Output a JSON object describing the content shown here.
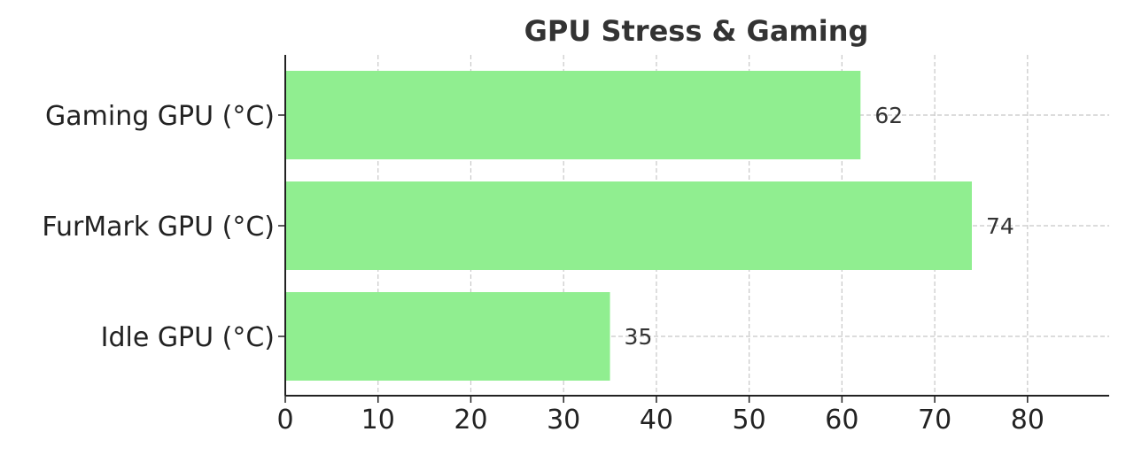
{
  "chart_data": {
    "type": "bar",
    "orientation": "horizontal",
    "title": "GPU Stress & Gaming",
    "xlabel": "",
    "ylabel": "",
    "categories": [
      "Gaming GPU (°C)",
      "FurMark GPU (°C)",
      "Idle GPU (°C)"
    ],
    "values": [
      62,
      74,
      35
    ],
    "data_labels": [
      "62",
      "74",
      "35"
    ],
    "xlim": [
      0,
      88.8
    ],
    "xticks": [
      0,
      10,
      20,
      30,
      40,
      50,
      60,
      70,
      80
    ],
    "xtick_labels": [
      "0",
      "10",
      "20",
      "30",
      "40",
      "50",
      "60",
      "70",
      "80"
    ],
    "grid": true,
    "bar_color": "#90ee90"
  }
}
